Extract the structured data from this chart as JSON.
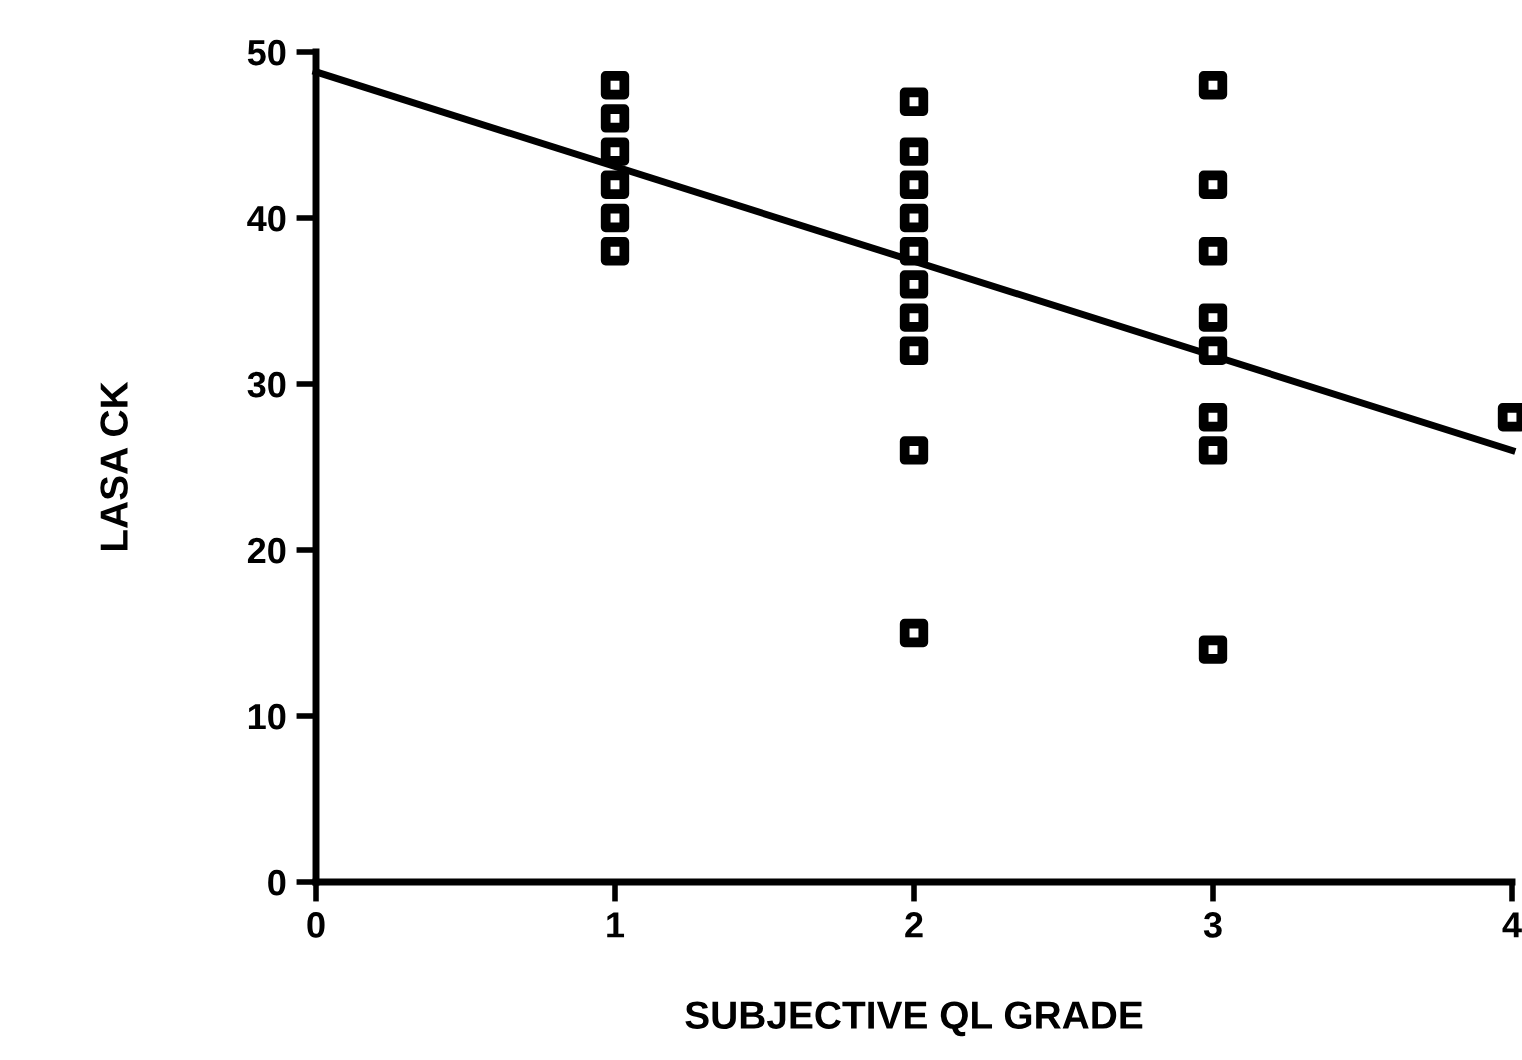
{
  "chart_data": {
    "type": "scatter",
    "xlabel": "SUBJECTIVE QL GRADE",
    "ylabel": "LASA CK",
    "xlim": [
      0,
      4
    ],
    "xticks": [
      0,
      1,
      2,
      3,
      4
    ],
    "ylim": [
      0,
      50
    ],
    "yticks": [
      0,
      10,
      20,
      30,
      40,
      50
    ],
    "grid": false,
    "legend": false,
    "marker": "square",
    "series": [
      {
        "color": "#000000",
        "x": [
          1,
          1,
          1,
          1,
          1,
          1,
          2,
          2,
          2,
          2,
          2,
          2,
          2,
          2,
          2,
          2,
          3,
          3,
          3,
          3,
          3,
          3,
          3,
          3,
          4
        ],
        "values": [
          48,
          46,
          44,
          42,
          40,
          38,
          47,
          44,
          42,
          40,
          38,
          36,
          34,
          32,
          26,
          15,
          48,
          42,
          38,
          34,
          32,
          28,
          26,
          14,
          28
        ]
      },
      {
        "type": "line",
        "color": "#000000",
        "marker": "none",
        "line_style": "solid",
        "x": [
          0,
          4
        ],
        "values": [
          48.8,
          26.0
        ]
      }
    ]
  }
}
